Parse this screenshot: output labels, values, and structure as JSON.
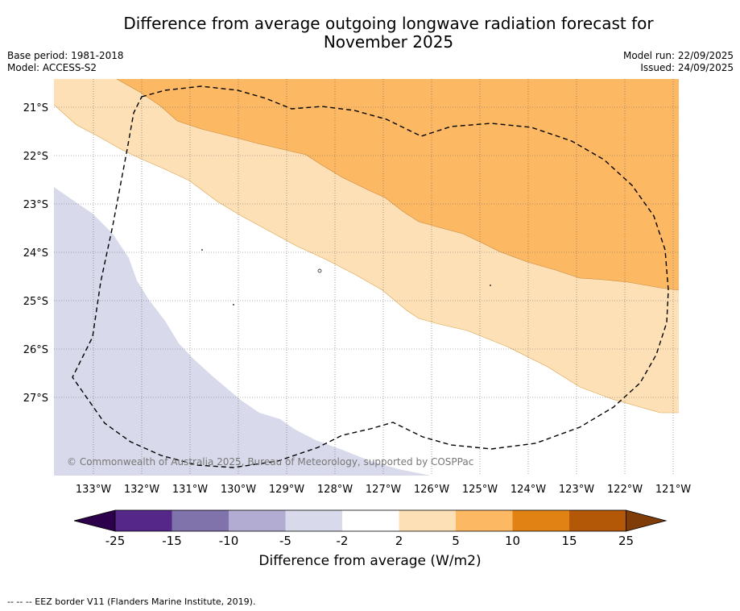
{
  "title": {
    "line1": "Difference from average outgoing longwave radiation forecast for",
    "line2": "November 2025"
  },
  "meta": {
    "base_period": "Base period: 1981-2018",
    "model": "Model: ACCESS-S2",
    "model_run": "Model run: 22/09/2025",
    "issued": "Issued: 24/09/2025"
  },
  "map": {
    "lat_labels": [
      "21°S",
      "22°S",
      "23°S",
      "24°S",
      "25°S",
      "26°S",
      "27°S"
    ],
    "lon_labels": [
      "133°W",
      "132°W",
      "131°W",
      "130°W",
      "129°W",
      "128°W",
      "127°W",
      "126°W",
      "125°W",
      "124°W",
      "123°W",
      "122°W",
      "121°W"
    ],
    "copyright": "© Commonwealth of Australia 2025, Bureau of Meteorology, supported by COSPPac"
  },
  "colorbar": {
    "ticks": [
      "-25",
      "-15",
      "-10",
      "-5",
      "-2",
      "2",
      "5",
      "10",
      "15",
      "25"
    ],
    "label": "Difference from average (W/m2)",
    "colors": [
      "#2d004b",
      "#542788",
      "#8073ac",
      "#b2abd2",
      "#d8daeb",
      "#ffffff",
      "#fee0b6",
      "#fdb863",
      "#e08214",
      "#b35806",
      "#7f3b08"
    ]
  },
  "footnote": "--  --  -- EEZ border V11 (Flanders Marine Institute, 2019)."
}
